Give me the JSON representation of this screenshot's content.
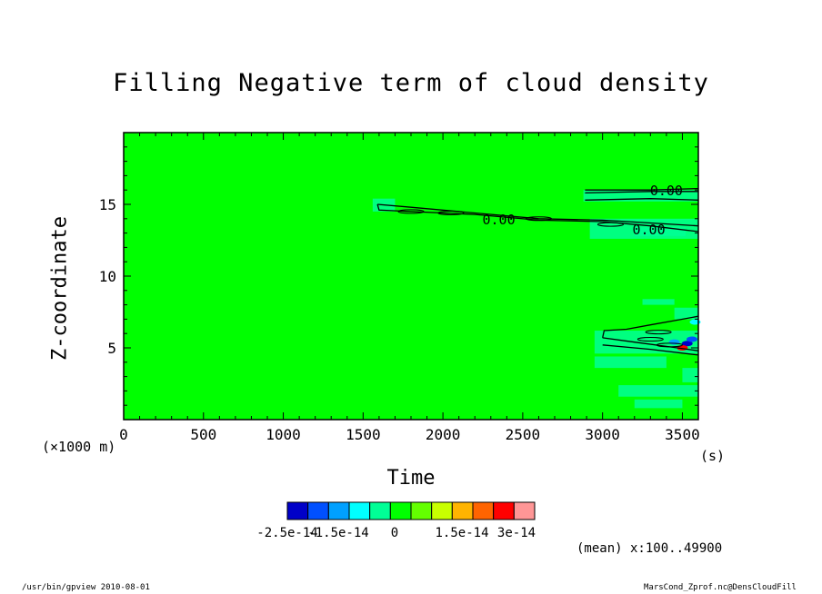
{
  "title": "Filling Negative term of cloud density",
  "chart_data": {
    "type": "heatmap",
    "title": "Filling Negative term of cloud density",
    "xlabel": "Time",
    "ylabel": "Z-coordinate",
    "x_units": "(s)",
    "y_units": "(×1000 m)",
    "xlim": [
      0,
      3600
    ],
    "ylim": [
      0,
      20
    ],
    "x_ticks": [
      "0",
      "500",
      "1000",
      "1500",
      "2000",
      "2500",
      "3000",
      "3500"
    ],
    "y_ticks": [
      "5",
      "10",
      "15"
    ],
    "background_value": 0,
    "contour_labels": [
      "0.00",
      "0.00",
      "0.00"
    ],
    "colorbar": {
      "colors": [
        "#0000c8",
        "#0050ff",
        "#00a0ff",
        "#00ffff",
        "#00ff96",
        "#00ff00",
        "#64ff00",
        "#c8ff00",
        "#ffb400",
        "#ff6400",
        "#ff0000",
        "#ff9696"
      ],
      "tick_labels": [
        "-2.5e-14",
        "-1.5e-14",
        "0",
        "1.5e-14",
        "3e-14"
      ]
    },
    "grid": false
  },
  "annotation": "(mean) x:100..49900",
  "footer_left": "/usr/bin/gpview  2010-08-01",
  "footer_right": "MarsCond_Zprof.nc@DensCloudFill"
}
